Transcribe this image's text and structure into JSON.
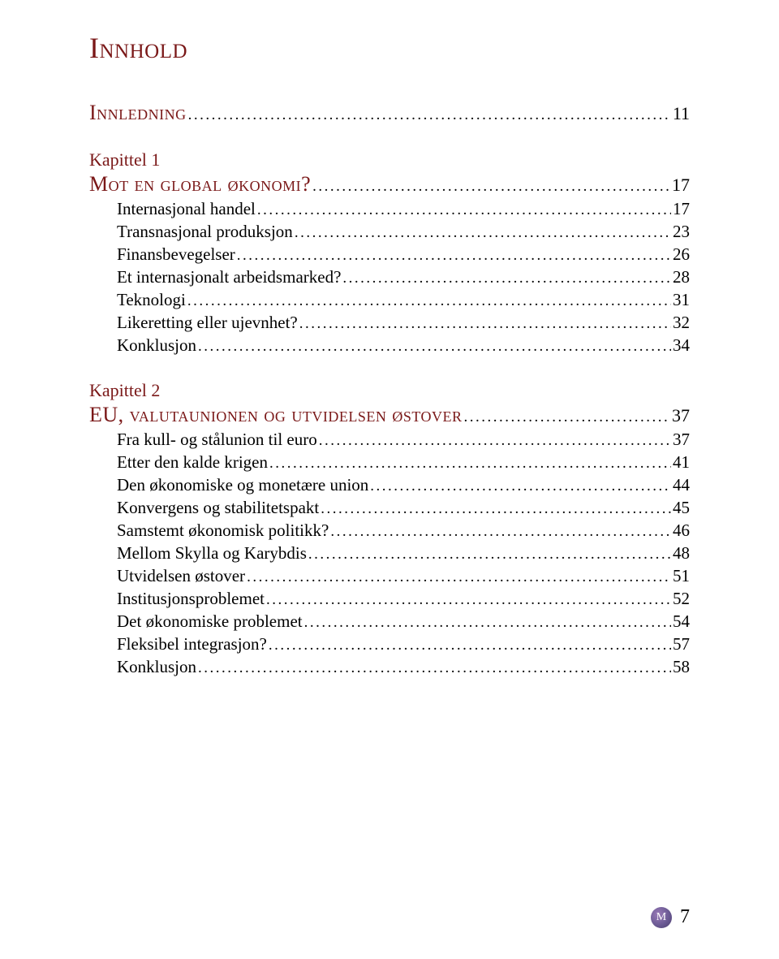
{
  "title": "Innhold",
  "sections": [
    {
      "type": "section",
      "label": "Innledning",
      "page": "11"
    },
    {
      "type": "chapter",
      "chapter_label": "Kapittel 1",
      "heading": "Mot en global økonomi?",
      "heading_page": "17",
      "items": [
        {
          "label": "Internasjonal handel",
          "page": "17"
        },
        {
          "label": "Transnasjonal produksjon",
          "page": "23"
        },
        {
          "label": "Finansbevegelser",
          "page": "26"
        },
        {
          "label": "Et internasjonalt arbeidsmarked?",
          "page": "28"
        },
        {
          "label": "Teknologi",
          "page": "31"
        },
        {
          "label": "Likeretting eller ujevnhet?",
          "page": "32"
        },
        {
          "label": "Konklusjon",
          "page": "34"
        }
      ]
    },
    {
      "type": "chapter",
      "chapter_label": "Kapittel 2",
      "heading": "EU, valutaunionen og utvidelsen østover",
      "heading_page": "37",
      "items": [
        {
          "label": "Fra kull- og stålunion til euro",
          "page": "37"
        },
        {
          "label": "Etter den kalde krigen",
          "page": "41"
        },
        {
          "label": "Den økonomiske og monetære union",
          "page": "44"
        },
        {
          "label": "Konvergens og stabilitetspakt",
          "page": "45"
        },
        {
          "label": "Samstemt økonomisk politikk?",
          "page": "46"
        },
        {
          "label": "Mellom Skylla og Karybdis",
          "page": "48"
        },
        {
          "label": "Utvidelsen østover",
          "page": "51"
        },
        {
          "label": "Institusjonsproblemet",
          "page": "52"
        },
        {
          "label": "Det økonomiske problemet",
          "page": "54"
        },
        {
          "label": "Fleksibel integrasjon?",
          "page": "57"
        },
        {
          "label": "Konklusjon",
          "page": "58"
        }
      ]
    }
  ],
  "footer": {
    "logo_letter": "M",
    "page_number": "7"
  },
  "colors": {
    "accent": "#7a1818",
    "text": "#000000",
    "background": "#ffffff"
  }
}
